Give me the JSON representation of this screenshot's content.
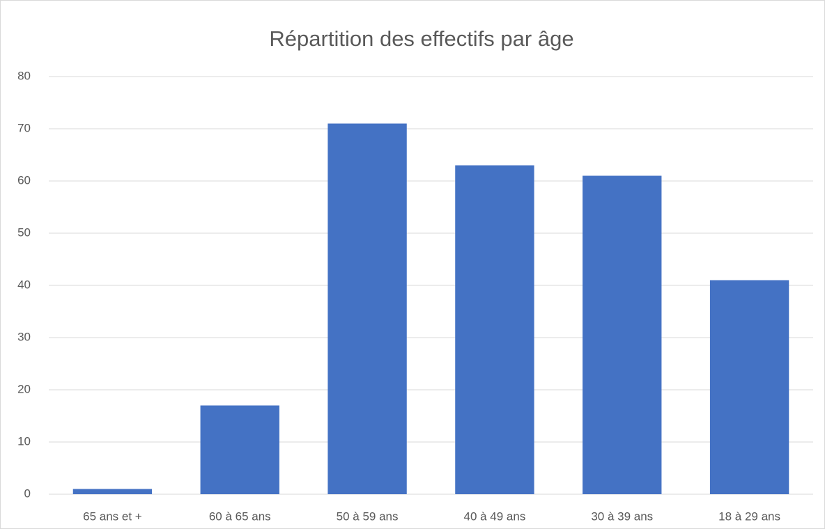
{
  "chart_data": {
    "type": "bar",
    "title": "Répartition des effectifs par âge",
    "categories": [
      "65 ans et +",
      "60 à 65 ans",
      "50 à 59 ans",
      "40 à 49 ans",
      "30 à 39 ans",
      "18 à 29 ans"
    ],
    "values": [
      1,
      17,
      71,
      63,
      61,
      41
    ],
    "color": "#4472c4",
    "ylim": [
      0,
      80
    ],
    "yticks": [
      0,
      10,
      20,
      30,
      40,
      50,
      60,
      70,
      80
    ],
    "grid": true
  }
}
